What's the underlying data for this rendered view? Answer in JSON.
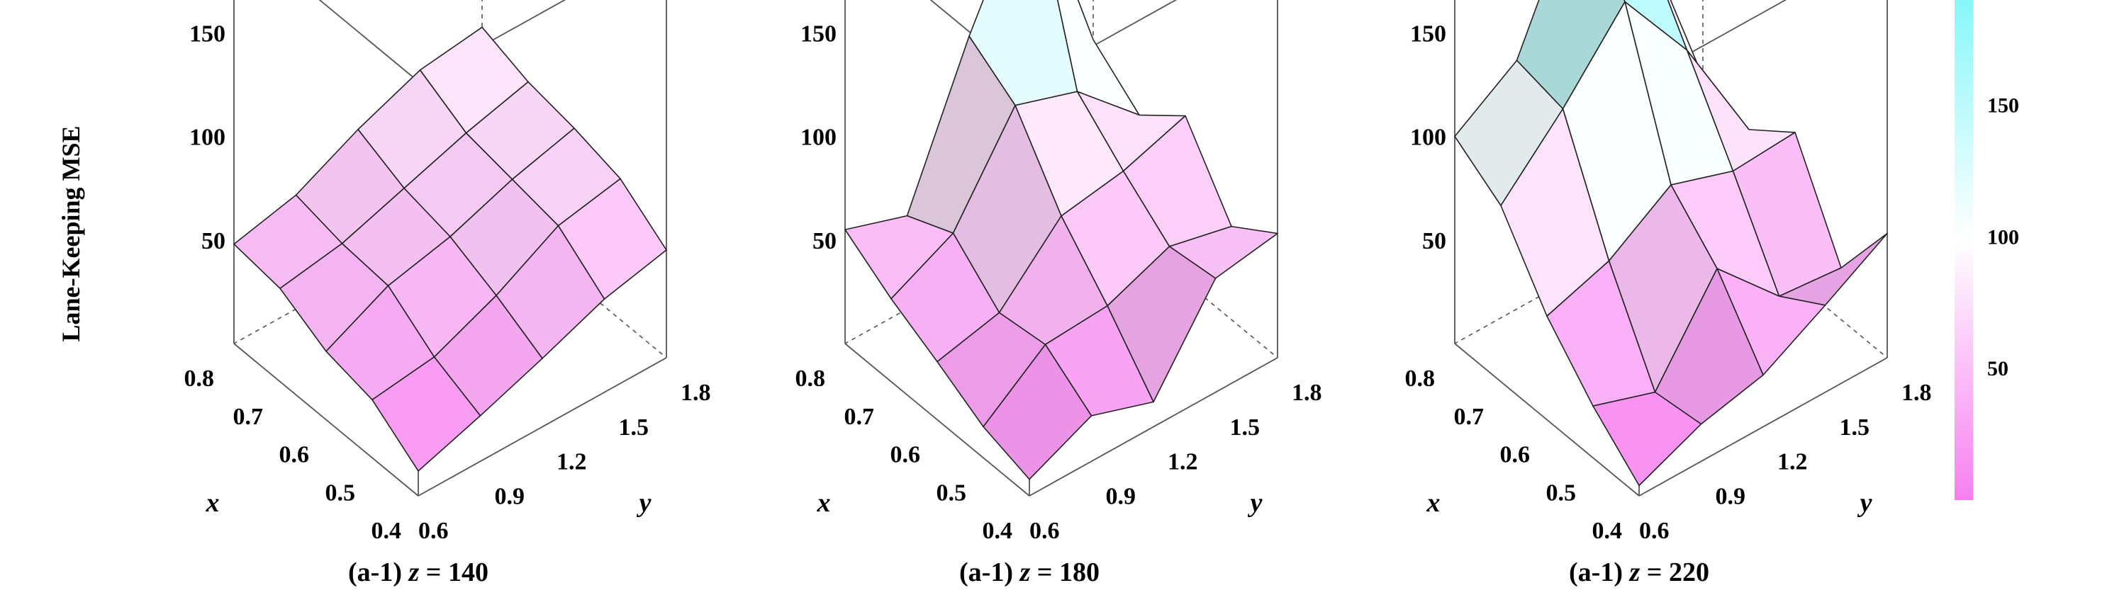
{
  "colors": {
    "low": "#f77ff0",
    "mid": "#ffffff",
    "high": "#88f7f9",
    "edge": "#222222",
    "frame": "#555555"
  },
  "chart_data": {
    "type": "surface3d",
    "zlabel": "Lane-Keeping MSE",
    "x_ticks": [
      "0.8",
      "0.7",
      "0.6",
      "0.5",
      "0.4"
    ],
    "y_ticks": [
      "0.6",
      "0.9",
      "1.2",
      "1.5",
      "1.8"
    ],
    "z_ticks": [
      "50",
      "100",
      "150"
    ],
    "xlabel": "x",
    "ylabel": "y",
    "x": [
      0.4,
      0.5,
      0.6,
      0.7,
      0.8
    ],
    "y": [
      0.6,
      0.9,
      1.2,
      1.5,
      1.8
    ],
    "zlim": [
      0,
      200
    ],
    "colorbar": {
      "ticks": [
        "50",
        "100",
        "150"
      ],
      "range": [
        0,
        190
      ]
    },
    "panels": [
      {
        "caption_prefix": "(a-1) ",
        "caption_var": "z",
        "caption_eq": " = ",
        "caption_value": "140",
        "z": [
          [
            12,
            22,
            33,
            45,
            52
          ],
          [
            28,
            32,
            45,
            62,
            68
          ],
          [
            33,
            48,
            55,
            66,
            74
          ],
          [
            45,
            50,
            60,
            70,
            78
          ],
          [
            48,
            55,
            70,
            82,
            86
          ]
        ]
      },
      {
        "caption_prefix": "(a-1) ",
        "caption_var": "z",
        "caption_eq": " = ",
        "caption_value": "180",
        "z": [
          [
            8,
            22,
            12,
            55,
            60
          ],
          [
            15,
            38,
            40,
            52,
            45
          ],
          [
            28,
            35,
            65,
            70,
            80
          ],
          [
            40,
            55,
            100,
            90,
            62
          ],
          [
            55,
            45,
            115,
            175,
            80
          ]
        ]
      },
      {
        "caption_prefix": "(a-1) ",
        "caption_var": "z",
        "caption_eq": " = ",
        "caption_value": "220",
        "z": [
          [
            5,
            18,
            25,
            42,
            60
          ],
          [
            25,
            15,
            58,
            28,
            25
          ],
          [
            50,
            60,
            80,
            70,
            72
          ],
          [
            85,
            115,
            150,
            110,
            55
          ],
          [
            100,
            120,
            185,
            150,
            62
          ]
        ]
      }
    ]
  }
}
